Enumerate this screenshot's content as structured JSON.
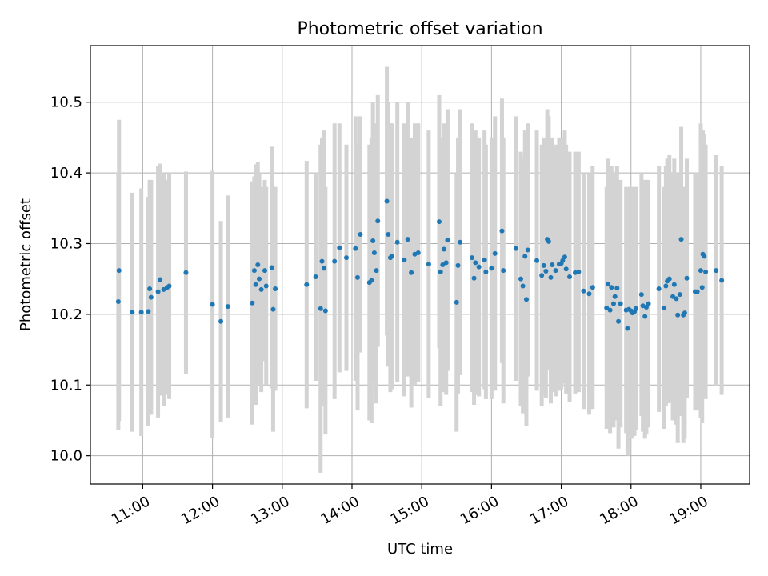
{
  "chart_data": {
    "type": "scatter",
    "title": "Photometric offset variation",
    "xlabel": "UTC time",
    "ylabel": "Photometric offset",
    "x_unit": "hours (UTC)",
    "xlim": [
      10.25,
      19.7
    ],
    "ylim": [
      9.96,
      10.58
    ],
    "yticks": [
      10.0,
      10.1,
      10.2,
      10.3,
      10.4,
      10.5
    ],
    "ytick_labels": [
      "10.0",
      "10.1",
      "10.2",
      "10.3",
      "10.4",
      "10.5"
    ],
    "xticks": [
      11,
      12,
      13,
      14,
      15,
      16,
      17,
      18,
      19
    ],
    "xtick_labels": [
      "11:00",
      "12:00",
      "13:00",
      "14:00",
      "15:00",
      "16:00",
      "17:00",
      "18:00",
      "19:00"
    ],
    "grid": true,
    "colors": {
      "point": "#1f77b4",
      "errorbar": "#d3d3d3",
      "grid": "#b0b0b0"
    },
    "points": [
      [
        10.65,
        10.218,
        10.4
      ],
      [
        10.66,
        10.262,
        10.475
      ],
      [
        10.85,
        10.203,
        10.372
      ],
      [
        10.98,
        10.203,
        10.378
      ],
      [
        11.08,
        10.204,
        10.366
      ],
      [
        11.1,
        10.236,
        10.39
      ],
      [
        11.12,
        10.224,
        10.39
      ],
      [
        11.22,
        10.232,
        10.41
      ],
      [
        11.25,
        10.249,
        10.413
      ],
      [
        11.3,
        10.235,
        10.4
      ],
      [
        11.35,
        10.238,
        10.39
      ],
      [
        11.38,
        10.24,
        10.4
      ],
      [
        11.62,
        10.259,
        10.402
      ],
      [
        12.0,
        10.214,
        10.403
      ],
      [
        12.12,
        10.19,
        10.332
      ],
      [
        12.22,
        10.211,
        10.368
      ],
      [
        12.57,
        10.216,
        10.388
      ],
      [
        12.6,
        10.262,
        10.395
      ],
      [
        12.62,
        10.242,
        10.412
      ],
      [
        12.65,
        10.27,
        10.415
      ],
      [
        12.67,
        10.25,
        10.4
      ],
      [
        12.7,
        10.235,
        10.38
      ],
      [
        12.75,
        10.262,
        10.39
      ],
      [
        12.77,
        10.24,
        10.38
      ],
      [
        12.85,
        10.266,
        10.437
      ],
      [
        12.87,
        10.207,
        10.38
      ],
      [
        12.9,
        10.236,
        10.38
      ],
      [
        13.35,
        10.242,
        10.417
      ],
      [
        13.48,
        10.253,
        10.4
      ],
      [
        13.55,
        10.208,
        10.44
      ],
      [
        13.57,
        10.275,
        10.45
      ],
      [
        13.6,
        10.265,
        10.46
      ],
      [
        13.62,
        10.205,
        10.38
      ],
      [
        13.75,
        10.275,
        10.47
      ],
      [
        13.82,
        10.294,
        10.47
      ],
      [
        13.92,
        10.28,
        10.44
      ],
      [
        14.05,
        10.293,
        10.48
      ],
      [
        14.08,
        10.252,
        10.44
      ],
      [
        14.12,
        10.313,
        10.48
      ],
      [
        14.25,
        10.245,
        10.44
      ],
      [
        14.28,
        10.248,
        10.45
      ],
      [
        14.3,
        10.304,
        10.5
      ],
      [
        14.32,
        10.287,
        10.47
      ],
      [
        14.35,
        10.262,
        10.45
      ],
      [
        14.37,
        10.332,
        10.51
      ],
      [
        14.5,
        10.36,
        10.55
      ],
      [
        14.52,
        10.313,
        10.5
      ],
      [
        14.55,
        10.28,
        10.47
      ],
      [
        14.57,
        10.282,
        10.47
      ],
      [
        14.65,
        10.302,
        10.5
      ],
      [
        14.75,
        10.277,
        10.47
      ],
      [
        14.8,
        10.306,
        10.5
      ],
      [
        14.85,
        10.259,
        10.45
      ],
      [
        14.9,
        10.285,
        10.47
      ],
      [
        14.95,
        10.287,
        10.47
      ],
      [
        15.1,
        10.271,
        10.46
      ],
      [
        15.25,
        10.331,
        10.51
      ],
      [
        15.27,
        10.26,
        10.45
      ],
      [
        15.3,
        10.27,
        10.45
      ],
      [
        15.32,
        10.292,
        10.47
      ],
      [
        15.35,
        10.273,
        10.46
      ],
      [
        15.37,
        10.305,
        10.49
      ],
      [
        15.5,
        10.217,
        10.4
      ],
      [
        15.52,
        10.269,
        10.45
      ],
      [
        15.55,
        10.302,
        10.49
      ],
      [
        15.72,
        10.28,
        10.47
      ],
      [
        15.75,
        10.251,
        10.43
      ],
      [
        15.77,
        10.273,
        10.46
      ],
      [
        15.82,
        10.267,
        10.45
      ],
      [
        15.9,
        10.277,
        10.46
      ],
      [
        15.92,
        10.26,
        10.44
      ],
      [
        16.0,
        10.265,
        10.45
      ],
      [
        16.05,
        10.286,
        10.48
      ],
      [
        16.15,
        10.318,
        10.505
      ],
      [
        16.17,
        10.262,
        10.45
      ],
      [
        16.35,
        10.293,
        10.48
      ],
      [
        16.42,
        10.25,
        10.43
      ],
      [
        16.45,
        10.24,
        10.42
      ],
      [
        16.48,
        10.282,
        10.46
      ],
      [
        16.5,
        10.221,
        10.4
      ],
      [
        16.52,
        10.291,
        10.47
      ],
      [
        16.65,
        10.276,
        10.46
      ],
      [
        16.72,
        10.255,
        10.44
      ],
      [
        16.75,
        10.269,
        10.45
      ],
      [
        16.78,
        10.261,
        10.44
      ],
      [
        16.8,
        10.306,
        10.49
      ],
      [
        16.82,
        10.303,
        10.48
      ],
      [
        16.85,
        10.252,
        10.43
      ],
      [
        16.87,
        10.27,
        10.45
      ],
      [
        16.92,
        10.262,
        10.44
      ],
      [
        16.97,
        10.271,
        10.45
      ],
      [
        17.0,
        10.272,
        10.45
      ],
      [
        17.02,
        10.276,
        10.45
      ],
      [
        17.05,
        10.281,
        10.46
      ],
      [
        17.07,
        10.264,
        10.44
      ],
      [
        17.12,
        10.253,
        10.43
      ],
      [
        17.2,
        10.259,
        10.43
      ],
      [
        17.25,
        10.26,
        10.43
      ],
      [
        17.32,
        10.233,
        10.4
      ],
      [
        17.4,
        10.229,
        10.4
      ],
      [
        17.45,
        10.238,
        10.41
      ],
      [
        17.65,
        10.209,
        10.38
      ],
      [
        17.67,
        10.243,
        10.42
      ],
      [
        17.7,
        10.206,
        10.38
      ],
      [
        17.72,
        10.238,
        10.41
      ],
      [
        17.75,
        10.215,
        10.39
      ],
      [
        17.77,
        10.225,
        10.4
      ],
      [
        17.8,
        10.237,
        10.41
      ],
      [
        17.82,
        10.19,
        10.37
      ],
      [
        17.85,
        10.215,
        10.39
      ],
      [
        17.93,
        10.206,
        10.38
      ],
      [
        17.95,
        10.18,
        10.36
      ],
      [
        17.97,
        10.207,
        10.38
      ],
      [
        18.0,
        10.205,
        10.38
      ],
      [
        18.02,
        10.202,
        10.38
      ],
      [
        18.05,
        10.204,
        10.38
      ],
      [
        18.07,
        10.208,
        10.38
      ],
      [
        18.15,
        10.228,
        10.4
      ],
      [
        18.17,
        10.212,
        10.39
      ],
      [
        18.2,
        10.197,
        10.37
      ],
      [
        18.22,
        10.21,
        10.39
      ],
      [
        18.25,
        10.215,
        10.39
      ],
      [
        18.4,
        10.236,
        10.41
      ],
      [
        18.47,
        10.209,
        10.38
      ],
      [
        18.5,
        10.24,
        10.41
      ],
      [
        18.52,
        10.247,
        10.42
      ],
      [
        18.55,
        10.25,
        10.425
      ],
      [
        18.6,
        10.225,
        10.4
      ],
      [
        18.62,
        10.242,
        10.42
      ],
      [
        18.65,
        10.222,
        10.4
      ],
      [
        18.67,
        10.199,
        10.38
      ],
      [
        18.7,
        10.228,
        10.4
      ],
      [
        18.72,
        10.306,
        10.465
      ],
      [
        18.75,
        10.199,
        10.38
      ],
      [
        18.77,
        10.202,
        10.38
      ],
      [
        18.8,
        10.251,
        10.42
      ],
      [
        18.92,
        10.232,
        10.4
      ],
      [
        18.95,
        10.232,
        10.4
      ],
      [
        19.0,
        10.262,
        10.47
      ],
      [
        19.02,
        10.238,
        10.43
      ],
      [
        19.03,
        10.285,
        10.46
      ],
      [
        19.05,
        10.282,
        10.455
      ],
      [
        19.07,
        10.26,
        10.44
      ],
      [
        19.22,
        10.262,
        10.425
      ],
      [
        19.3,
        10.248,
        10.41
      ]
    ]
  }
}
